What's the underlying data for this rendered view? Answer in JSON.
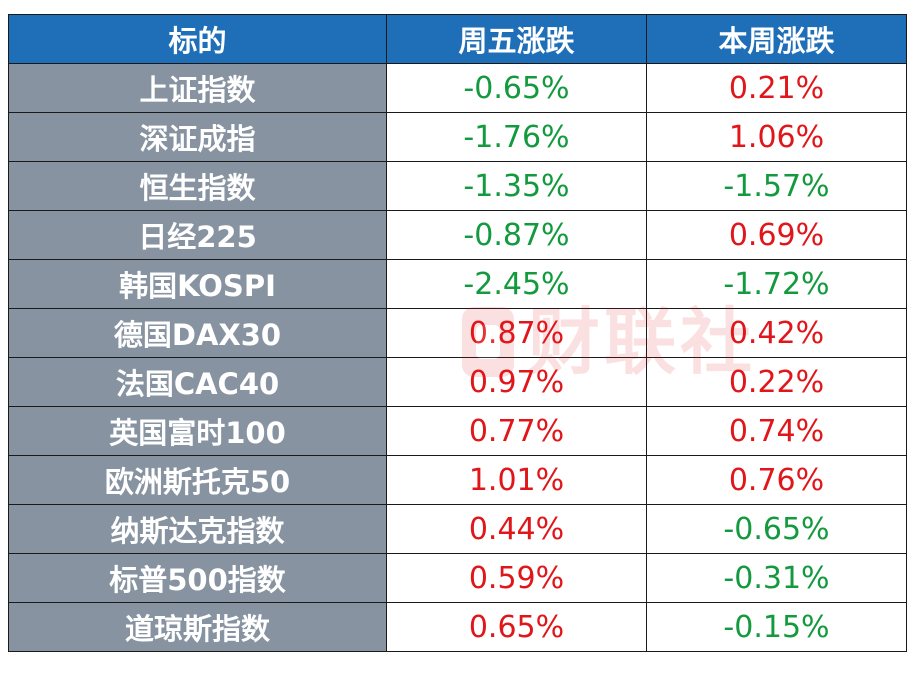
{
  "header": {
    "col1": "标的",
    "col2": "周五涨跌",
    "col3": "本周涨跌"
  },
  "rows": [
    {
      "name": "上证指数",
      "friday": "-0.65%",
      "week": "0.21%"
    },
    {
      "name": "深证成指",
      "friday": "-1.76%",
      "week": "1.06%"
    },
    {
      "name": "恒生指数",
      "friday": "-1.35%",
      "week": "-1.57%"
    },
    {
      "name": "日经225",
      "friday": "-0.87%",
      "week": "0.69%"
    },
    {
      "name": "韩国KOSPI",
      "friday": "-2.45%",
      "week": "-1.72%"
    },
    {
      "name": "德国DAX30",
      "friday": "0.87%",
      "week": "0.42%"
    },
    {
      "name": "法国CAC40",
      "friday": "0.97%",
      "week": "0.22%"
    },
    {
      "name": "英国富时100",
      "friday": "0.77%",
      "week": "0.74%"
    },
    {
      "name": "欧洲斯托克50",
      "friday": "1.01%",
      "week": "0.76%"
    },
    {
      "name": "纳斯达克指数",
      "friday": "0.44%",
      "week": "-0.65%"
    },
    {
      "name": "标普500指数",
      "friday": "0.59%",
      "week": "-0.31%"
    },
    {
      "name": "道琼斯指数",
      "friday": "0.65%",
      "week": "-0.15%"
    }
  ],
  "watermark": {
    "text": "财联社",
    "icon": "cls-logo-icon"
  },
  "colors": {
    "header_bg": "#1f6fb8",
    "label_bg": "#8793a0",
    "positive": "#e0161a",
    "negative": "#139a3e"
  }
}
